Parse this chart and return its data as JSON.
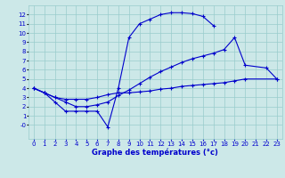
{
  "title": "Graphe des températures (°c)",
  "bg_color": "#cce8e8",
  "grid_color": "#99cccc",
  "line_color": "#0000cc",
  "xlim": [
    -0.5,
    23.5
  ],
  "ylim": [
    -1.5,
    13.0
  ],
  "xticks": [
    0,
    1,
    2,
    3,
    4,
    5,
    6,
    7,
    8,
    9,
    10,
    11,
    12,
    13,
    14,
    15,
    16,
    17,
    18,
    19,
    20,
    21,
    22,
    23
  ],
  "yticks": [
    0,
    1,
    2,
    3,
    4,
    5,
    6,
    7,
    8,
    9,
    10,
    11,
    12
  ],
  "ytick_labels": [
    "-0",
    "1",
    "2",
    "3",
    "4",
    "5",
    "6",
    "7",
    "8",
    "9",
    "10",
    "11",
    "12"
  ],
  "series": [
    {
      "x": [
        0,
        1,
        2,
        3,
        4,
        5,
        6,
        7,
        8,
        9,
        10,
        11,
        12,
        13,
        14,
        15,
        16,
        17
      ],
      "y": [
        4,
        3.5,
        2.5,
        1.5,
        1.5,
        1.5,
        1.5,
        -0.2,
        4.0,
        9.5,
        11.0,
        11.5,
        12.0,
        12.2,
        12.2,
        12.1,
        11.8,
        10.8
      ]
    },
    {
      "x": [
        0,
        1,
        2,
        3,
        4,
        5,
        6,
        7,
        8,
        9,
        10,
        11,
        12,
        13,
        14,
        15,
        16,
        17,
        18,
        19,
        20,
        22,
        23
      ],
      "y": [
        4,
        3.5,
        3.0,
        2.5,
        2.0,
        2.0,
        2.2,
        2.5,
        3.2,
        3.8,
        4.5,
        5.2,
        5.8,
        6.3,
        6.8,
        7.2,
        7.5,
        7.8,
        8.2,
        9.5,
        6.5,
        6.2,
        5.0
      ]
    },
    {
      "x": [
        0,
        1,
        2,
        3,
        4,
        5,
        6,
        7,
        8,
        9,
        10,
        11,
        12,
        13,
        14,
        15,
        16,
        17,
        18,
        19,
        20,
        23
      ],
      "y": [
        4,
        3.5,
        3.0,
        2.8,
        2.8,
        2.8,
        3.0,
        3.3,
        3.5,
        3.5,
        3.6,
        3.7,
        3.9,
        4.0,
        4.2,
        4.3,
        4.4,
        4.5,
        4.6,
        4.8,
        5.0,
        5.0
      ]
    }
  ]
}
